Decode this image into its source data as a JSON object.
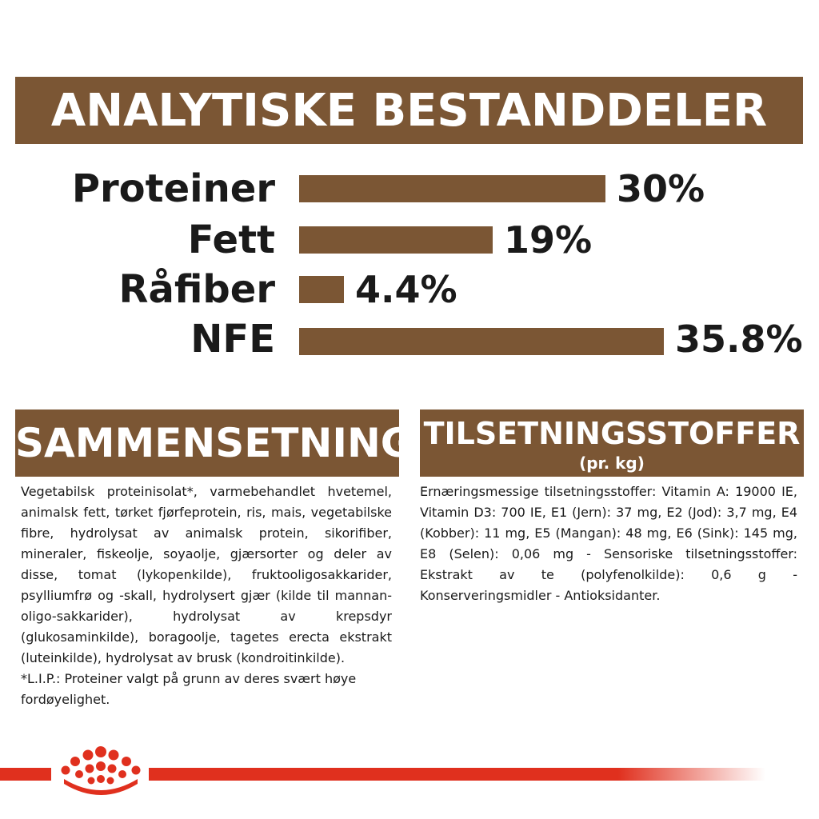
{
  "header": {
    "title": "ANALYTISKE BESTANDDELER"
  },
  "nutrients": [
    {
      "label": "Proteiner",
      "value_text": "30%",
      "value": 30
    },
    {
      "label": "Fett",
      "value_text": "19%",
      "value": 19
    },
    {
      "label": "Råfiber",
      "value_text": "4.4%",
      "value": 4.4
    },
    {
      "label": "NFE",
      "value_text": "35.8%",
      "value": 35.8
    }
  ],
  "composition": {
    "title": "SAMMENSETNING",
    "text": "Vegetabilsk proteinisolat*, varmebehandlet hvetemel, animalsk fett, tørket fjørfeprotein, ris, mais, vegetabilske fibre, hydrolysat av animalsk protein, sikorifiber, mineraler, fiskeolje, soyaolje, gjærsorter og deler av disse, tomat (lykopenkilde), fruktooligosakkarider, psylliumfrø og -skall, hydrolysert gjær (kilde til mannan-oligo-sakkarider), hydrolysat av krepsdyr (glukosaminkilde), boragoolje, tagetes erecta ekstrakt (luteinkilde), hydrolysat av brusk (kondroitinkilde).",
    "note": "*L.I.P.: Proteiner valgt på grunn av deres svært høye fordøyelighet."
  },
  "additives": {
    "title": "TILSETNINGSSTOFFER",
    "subtitle": "(pr. kg)",
    "text": "Ernæringsmessige tilsetningsstoffer: Vitamin A: 19000 IE, Vitamin D3: 700 IE, E1 (Jern): 37 mg, E2 (Jod): 3,7 mg, E4 (Kobber): 11 mg, E5 (Mangan): 48 mg, E6 (Sink): 145 mg, E8 (Selen): 0,06 mg - Sensoriske tilsetningsstoffer: Ekstrakt av te (polyfenolkilde): 0,6 g - Konserveringsmidler - Antioksidanter."
  },
  "colors": {
    "brown": "#7b5634",
    "red": "#e0301e",
    "white": "#ffffff"
  },
  "icons": {
    "logo": "royal-canin-crown-icon"
  }
}
